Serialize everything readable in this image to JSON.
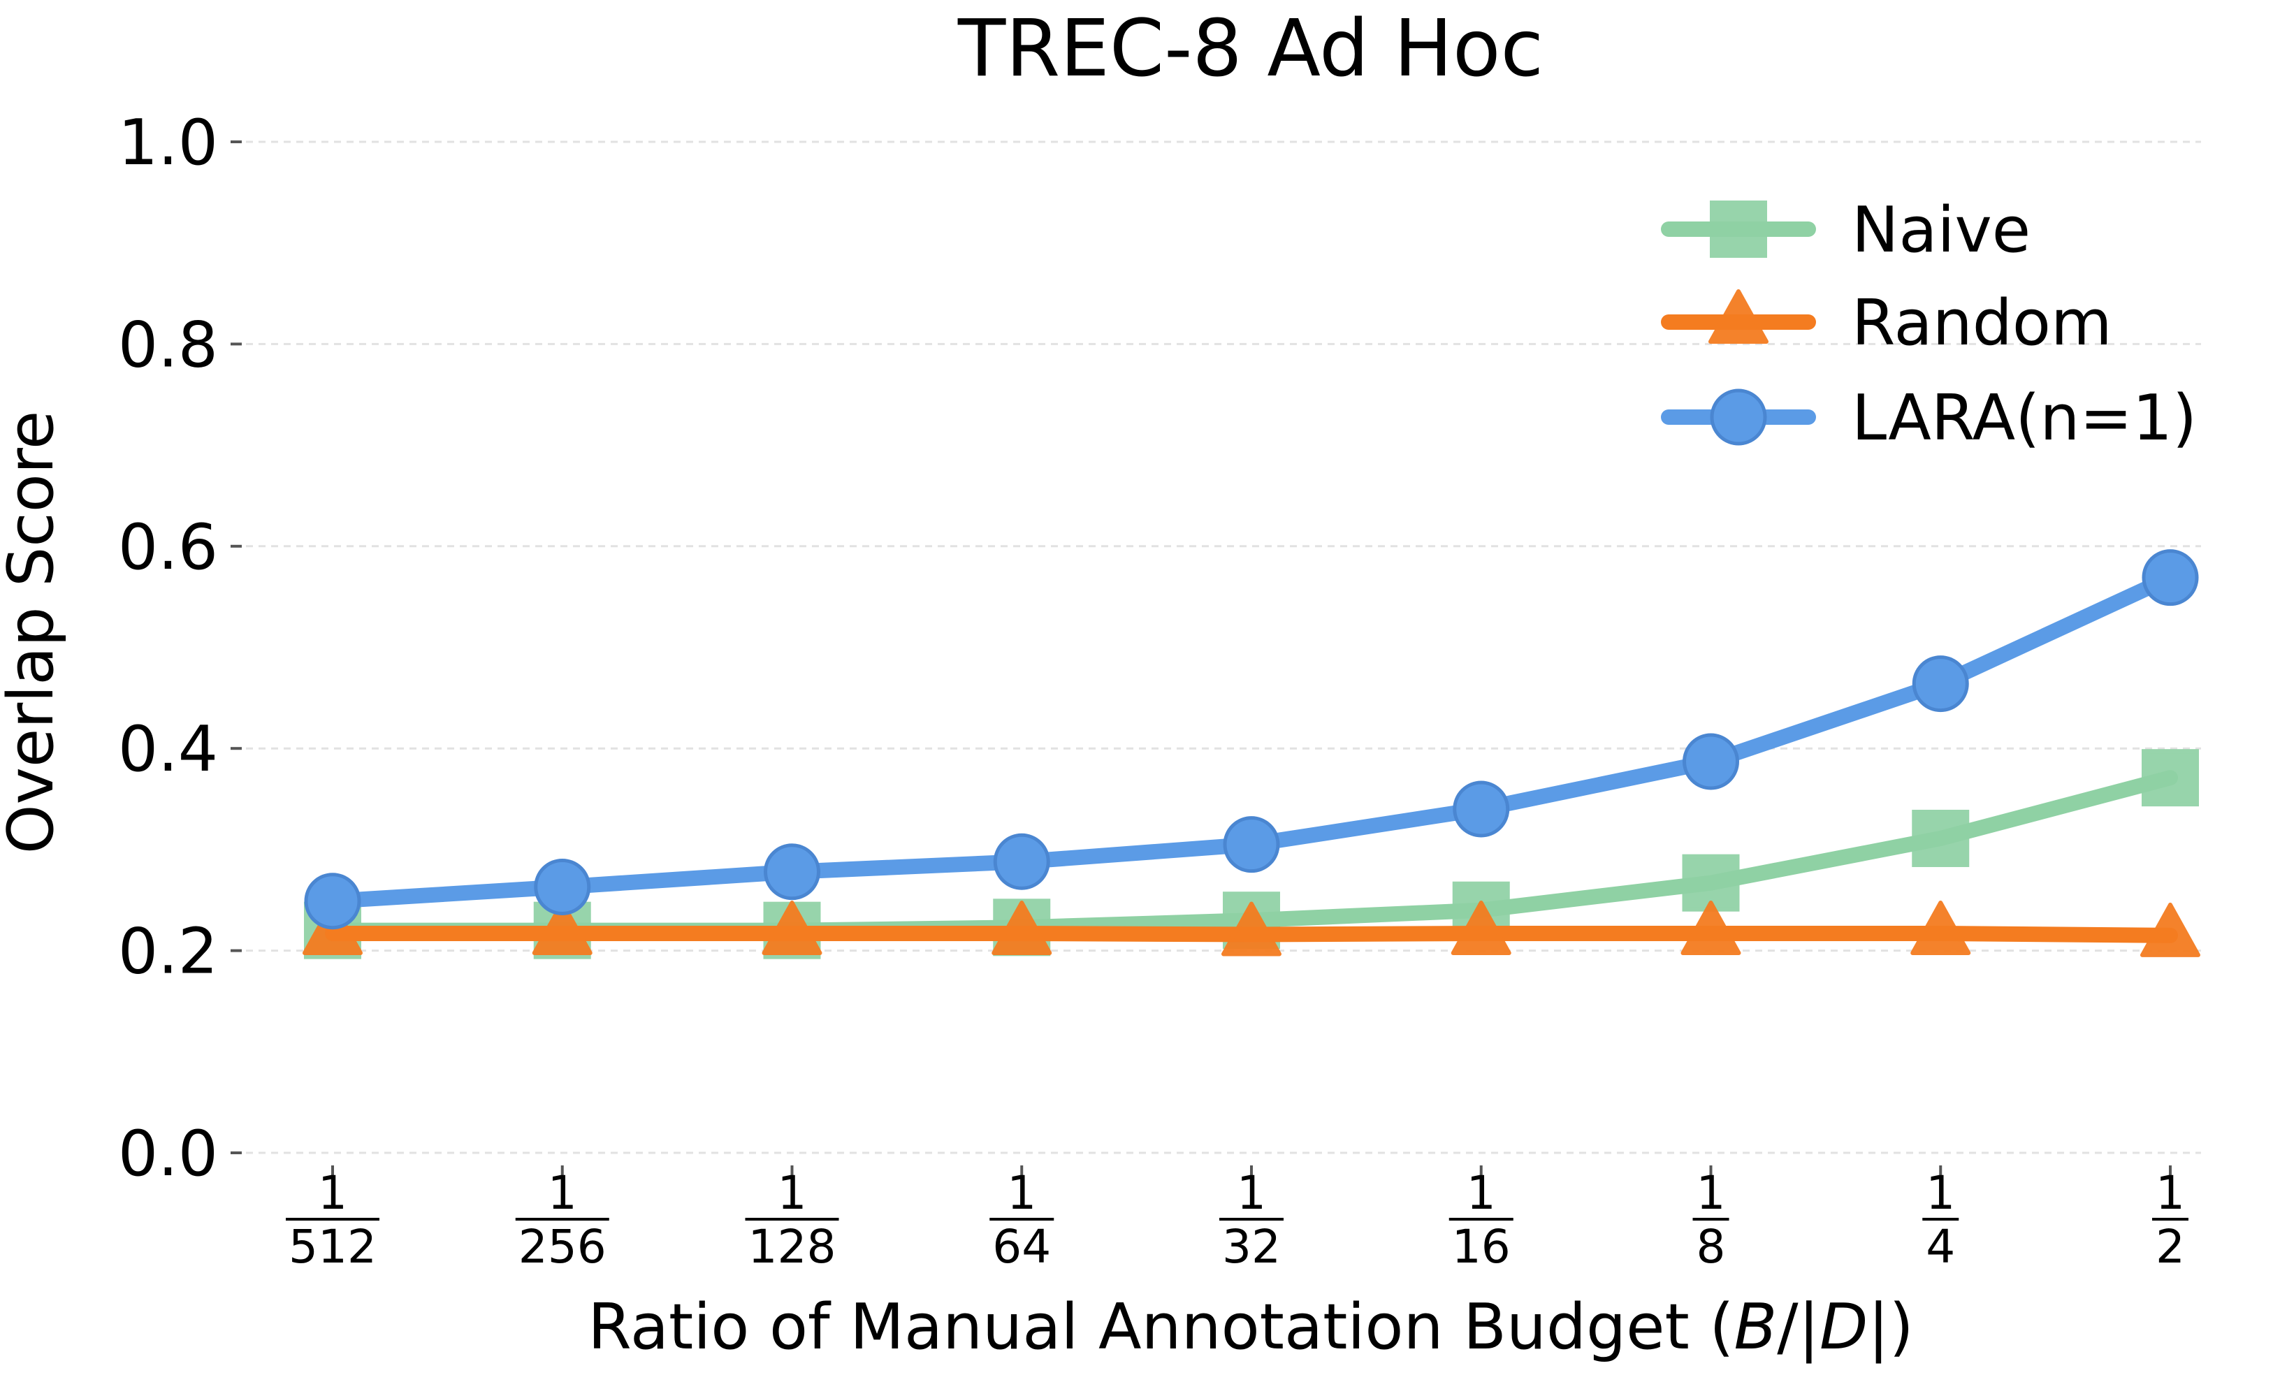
{
  "chart_data": {
    "type": "line",
    "title": "TREC-8 Ad Hoc",
    "xlabel_parts": [
      "Ratio of Manual Annotation Budget (",
      "B",
      "/|",
      "D",
      "|)"
    ],
    "ylabel": "Overlap Score",
    "ylim": [
      0,
      1.0
    ],
    "yticks": [
      "0.0",
      "0.2",
      "0.4",
      "0.6",
      "0.8",
      "1.0"
    ],
    "ytick_values": [
      0.0,
      0.2,
      0.4,
      0.6,
      0.8,
      1.0
    ],
    "grid": "horizontal dashed",
    "legend_position": "top-right",
    "categories": [
      {
        "num": "1",
        "den": "512"
      },
      {
        "num": "1",
        "den": "256"
      },
      {
        "num": "1",
        "den": "128"
      },
      {
        "num": "1",
        "den": "64"
      },
      {
        "num": "1",
        "den": "32"
      },
      {
        "num": "1",
        "den": "16"
      },
      {
        "num": "1",
        "den": "8"
      },
      {
        "num": "1",
        "den": "4"
      },
      {
        "num": "1",
        "den": "2"
      }
    ],
    "series": [
      {
        "name": "Naive",
        "color": "#8fd1a4",
        "marker": "square",
        "values": [
          0.22,
          0.22,
          0.22,
          0.223,
          0.23,
          0.24,
          0.267,
          0.311,
          0.371
        ]
      },
      {
        "name": "Random",
        "color": "#f47c20",
        "marker": "triangle",
        "values": [
          0.217,
          0.217,
          0.217,
          0.217,
          0.216,
          0.217,
          0.217,
          0.217,
          0.215
        ]
      },
      {
        "name": "LARA(n=1)",
        "color": "#5b9be6",
        "marker": "circle",
        "values": [
          0.249,
          0.263,
          0.278,
          0.288,
          0.305,
          0.34,
          0.387,
          0.464,
          0.569
        ]
      }
    ]
  }
}
